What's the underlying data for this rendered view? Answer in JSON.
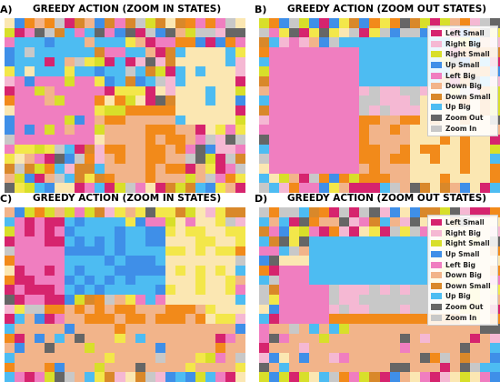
{
  "chart_data": [
    {
      "type": "heatmap",
      "panel_letter": "A)",
      "title": "GREEDY ACTION (ZOOM IN STATES)",
      "legend": null
    },
    {
      "type": "heatmap",
      "panel_letter": "B)",
      "title": "GREEDY ACTION (ZOOM OUT STATES)",
      "legend": {
        "placement": "top-right",
        "items": [
          "Left Small",
          "Right Big",
          "Right Small",
          "Up Small",
          "Left Big",
          "Down Big",
          "Down Small",
          "Up Big",
          "Zoom Out",
          "Zoom In"
        ]
      }
    },
    {
      "type": "heatmap",
      "panel_letter": "C)",
      "title": "GREEDY ACTION (ZOOM IN STATES)",
      "legend": null
    },
    {
      "type": "heatmap",
      "panel_letter": "D)",
      "title": "GREEDY ACTION (ZOOM OUT STATES)",
      "legend": {
        "placement": "top-right",
        "items": [
          "Left Small",
          "Right Big",
          "Right Small",
          "Up Small",
          "Left Big",
          "Down Big",
          "Down Small",
          "Up Big",
          "Zoom Out",
          "Zoom In"
        ]
      }
    }
  ],
  "action_colors": {
    "Left Small": "#d6246e",
    "Right Big": "#f5b8d3",
    "Right Small": "#d8df2a",
    "Up Small": "#3f8fe8",
    "Left Big": "#f07ec0",
    "Down Big": "#f2b48a",
    "Down Small": "#d9882a",
    "Up Big": "#4dbcf2",
    "Zoom Out": "#666666",
    "Zoom In": "#c8c8c8",
    "Orange": "#f28a1a",
    "Cream": "#fbe7b2",
    "Yellow": "#f3e74a"
  }
}
